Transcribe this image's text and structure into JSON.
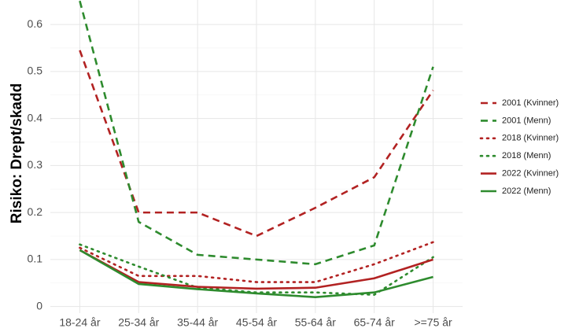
{
  "chart_data": {
    "type": "line",
    "y_label": "Risiko: Drept/skadd",
    "categories": [
      "18-24 år",
      "25-34 år",
      "35-44 år",
      "45-54 år",
      "55-64 år",
      "65-74 år",
      ">=75 år"
    ],
    "series": [
      {
        "name": "2001 (Kvinner)",
        "color": "#b22222",
        "linetype": "dashed",
        "values": [
          0.545,
          0.2,
          0.2,
          0.15,
          0.21,
          0.275,
          0.46
        ]
      },
      {
        "name": "2001 (Menn)",
        "color": "#2e8b2e",
        "linetype": "dashed",
        "values": [
          0.65,
          0.18,
          0.11,
          0.1,
          0.09,
          0.13,
          0.51
        ]
      },
      {
        "name": "2018 (Kvinner)",
        "color": "#b22222",
        "linetype": "dotted",
        "values": [
          0.125,
          0.065,
          0.065,
          0.052,
          0.052,
          0.09,
          0.137
        ]
      },
      {
        "name": "2018 (Menn)",
        "color": "#2e8b2e",
        "linetype": "dotted",
        "values": [
          0.132,
          0.085,
          0.04,
          0.03,
          0.03,
          0.025,
          0.105
        ]
      },
      {
        "name": "2022 (Kvinner)",
        "color": "#b22222",
        "linetype": "solid",
        "values": [
          0.12,
          0.052,
          0.042,
          0.038,
          0.04,
          0.06,
          0.1
        ]
      },
      {
        "name": "2022 (Menn)",
        "color": "#2e8b2e",
        "linetype": "solid",
        "values": [
          0.12,
          0.048,
          0.037,
          0.028,
          0.02,
          0.03,
          0.063
        ]
      }
    ],
    "ylim": [
      -0.014,
      0.652
    ],
    "yticks": [
      0,
      0.1,
      0.2,
      0.3,
      0.4,
      0.5,
      0.6
    ],
    "grid": true,
    "legend": "right"
  }
}
